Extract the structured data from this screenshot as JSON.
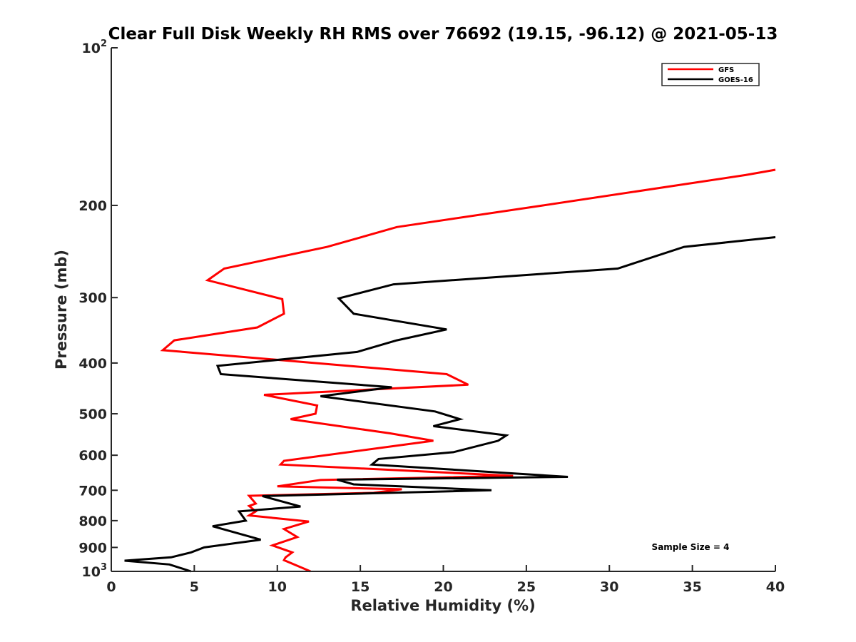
{
  "chart_data": {
    "type": "line",
    "title": "Clear Full Disk Weekly RH RMS over 76692 (19.15, -96.12) @ 2021-05-13",
    "xlabel": "Relative Humidity (%)",
    "ylabel": "Pressure (mb)",
    "xlim": [
      0,
      40
    ],
    "ylim": [
      100,
      1000
    ],
    "yscale": "log",
    "y_reversed": true,
    "grid": false,
    "x_ticks": [
      0,
      5,
      10,
      15,
      20,
      25,
      30,
      35,
      40
    ],
    "x_tick_labels": [
      "0",
      "5",
      "10",
      "15",
      "20",
      "25",
      "30",
      "35",
      "40"
    ],
    "y_ticks": [
      100,
      200,
      300,
      400,
      500,
      600,
      700,
      800,
      900,
      1000
    ],
    "y_tick_labels": [
      {
        "base": "10",
        "exp": "2"
      },
      {
        "base": "200",
        "exp": ""
      },
      {
        "base": "300",
        "exp": ""
      },
      {
        "base": "400",
        "exp": ""
      },
      {
        "base": "500",
        "exp": ""
      },
      {
        "base": "600",
        "exp": ""
      },
      {
        "base": "700",
        "exp": ""
      },
      {
        "base": "800",
        "exp": ""
      },
      {
        "base": "900",
        "exp": ""
      },
      {
        "base": "10",
        "exp": "3"
      }
    ],
    "legend_position": "top-right",
    "annotation": "Sample Size = 4",
    "series": [
      {
        "name": "GFS",
        "color": "#ff0000",
        "points": [
          [
            40.0,
            171
          ],
          [
            38.2,
            175
          ],
          [
            26.0,
            200
          ],
          [
            17.2,
            220
          ],
          [
            13.0,
            240
          ],
          [
            6.8,
            264
          ],
          [
            5.8,
            278
          ],
          [
            10.3,
            302
          ],
          [
            10.4,
            322
          ],
          [
            8.8,
            342
          ],
          [
            3.8,
            362
          ],
          [
            3.1,
            378
          ],
          [
            20.2,
            420
          ],
          [
            21.5,
            440
          ],
          [
            9.2,
            460
          ],
          [
            12.4,
            482
          ],
          [
            12.3,
            500
          ],
          [
            10.8,
            512
          ],
          [
            16.8,
            545
          ],
          [
            19.4,
            563
          ],
          [
            10.4,
            615
          ],
          [
            10.2,
            625
          ],
          [
            24.2,
            657
          ],
          [
            12.6,
            669
          ],
          [
            10.0,
            688
          ],
          [
            17.5,
            697
          ],
          [
            15.8,
            708
          ],
          [
            8.3,
            717
          ],
          [
            8.7,
            742
          ],
          [
            8.3,
            750
          ],
          [
            8.7,
            768
          ],
          [
            8.3,
            782
          ],
          [
            11.9,
            803
          ],
          [
            10.4,
            830
          ],
          [
            11.2,
            860
          ],
          [
            9.7,
            892
          ],
          [
            10.9,
            920
          ],
          [
            10.5,
            940
          ],
          [
            10.4,
            952
          ],
          [
            12.0,
            1000
          ]
        ]
      },
      {
        "name": "GOES-16",
        "color": "#000000",
        "points": [
          [
            40.0,
            230
          ],
          [
            34.5,
            240
          ],
          [
            30.5,
            264
          ],
          [
            17.0,
            283
          ],
          [
            13.7,
            301
          ],
          [
            14.6,
            322
          ],
          [
            20.2,
            345
          ],
          [
            17.2,
            362
          ],
          [
            14.8,
            381
          ],
          [
            6.4,
            405
          ],
          [
            6.6,
            420
          ],
          [
            16.9,
            445
          ],
          [
            12.6,
            463
          ],
          [
            19.5,
            495
          ],
          [
            21.0,
            512
          ],
          [
            19.4,
            528
          ],
          [
            23.8,
            550
          ],
          [
            23.3,
            563
          ],
          [
            20.6,
            592
          ],
          [
            16.1,
            610
          ],
          [
            15.7,
            625
          ],
          [
            27.5,
            660
          ],
          [
            13.6,
            668
          ],
          [
            14.6,
            682
          ],
          [
            22.9,
            700
          ],
          [
            9.1,
            718
          ],
          [
            11.4,
            752
          ],
          [
            7.7,
            768
          ],
          [
            8.1,
            800
          ],
          [
            6.1,
            820
          ],
          [
            9.0,
            870
          ],
          [
            5.6,
            900
          ],
          [
            4.8,
            920
          ],
          [
            3.6,
            940
          ],
          [
            0.8,
            954
          ],
          [
            3.5,
            970
          ],
          [
            4.8,
            1000
          ]
        ]
      }
    ]
  }
}
